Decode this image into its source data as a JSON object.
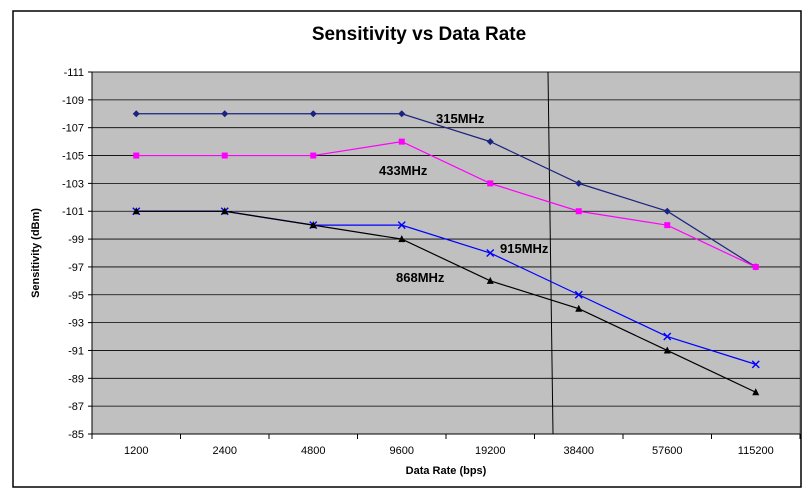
{
  "chart_data": {
    "type": "line",
    "title": "Sensitivity vs Data Rate",
    "xlabel": "Data Rate (bps)",
    "ylabel": "Sensitivity (dBm)",
    "categories": [
      "1200",
      "2400",
      "4800",
      "9600",
      "19200",
      "38400",
      "57600",
      "115200"
    ],
    "ylim": [
      -85,
      -111
    ],
    "y_ticks": [
      "-111",
      "-109",
      "-107",
      "-105",
      "-103",
      "-101",
      "-99",
      "-97",
      "-95",
      "-93",
      "-91",
      "-89",
      "-87",
      "-85"
    ],
    "grid": true,
    "plot_background": "#c0c0c0",
    "series": [
      {
        "name": "315MHz",
        "color": "#1a237e",
        "marker": "diamond",
        "values": [
          -108,
          -108,
          -108,
          -108,
          -106,
          -103,
          -101,
          -97
        ]
      },
      {
        "name": "433MHz",
        "color": "#ff00ff",
        "marker": "square",
        "values": [
          -105,
          -105,
          -105,
          -106,
          -103,
          -101,
          -100,
          -97
        ]
      },
      {
        "name": "915MHz",
        "color": "#0000ff",
        "marker": "x",
        "values": [
          -101,
          -101,
          -100,
          -100,
          -98,
          -95,
          -92,
          -90
        ]
      },
      {
        "name": "868MHz",
        "color": "#000000",
        "marker": "triangle",
        "values": [
          -101,
          -101,
          -100,
          -99,
          -96,
          -94,
          -91,
          -88
        ]
      }
    ]
  }
}
